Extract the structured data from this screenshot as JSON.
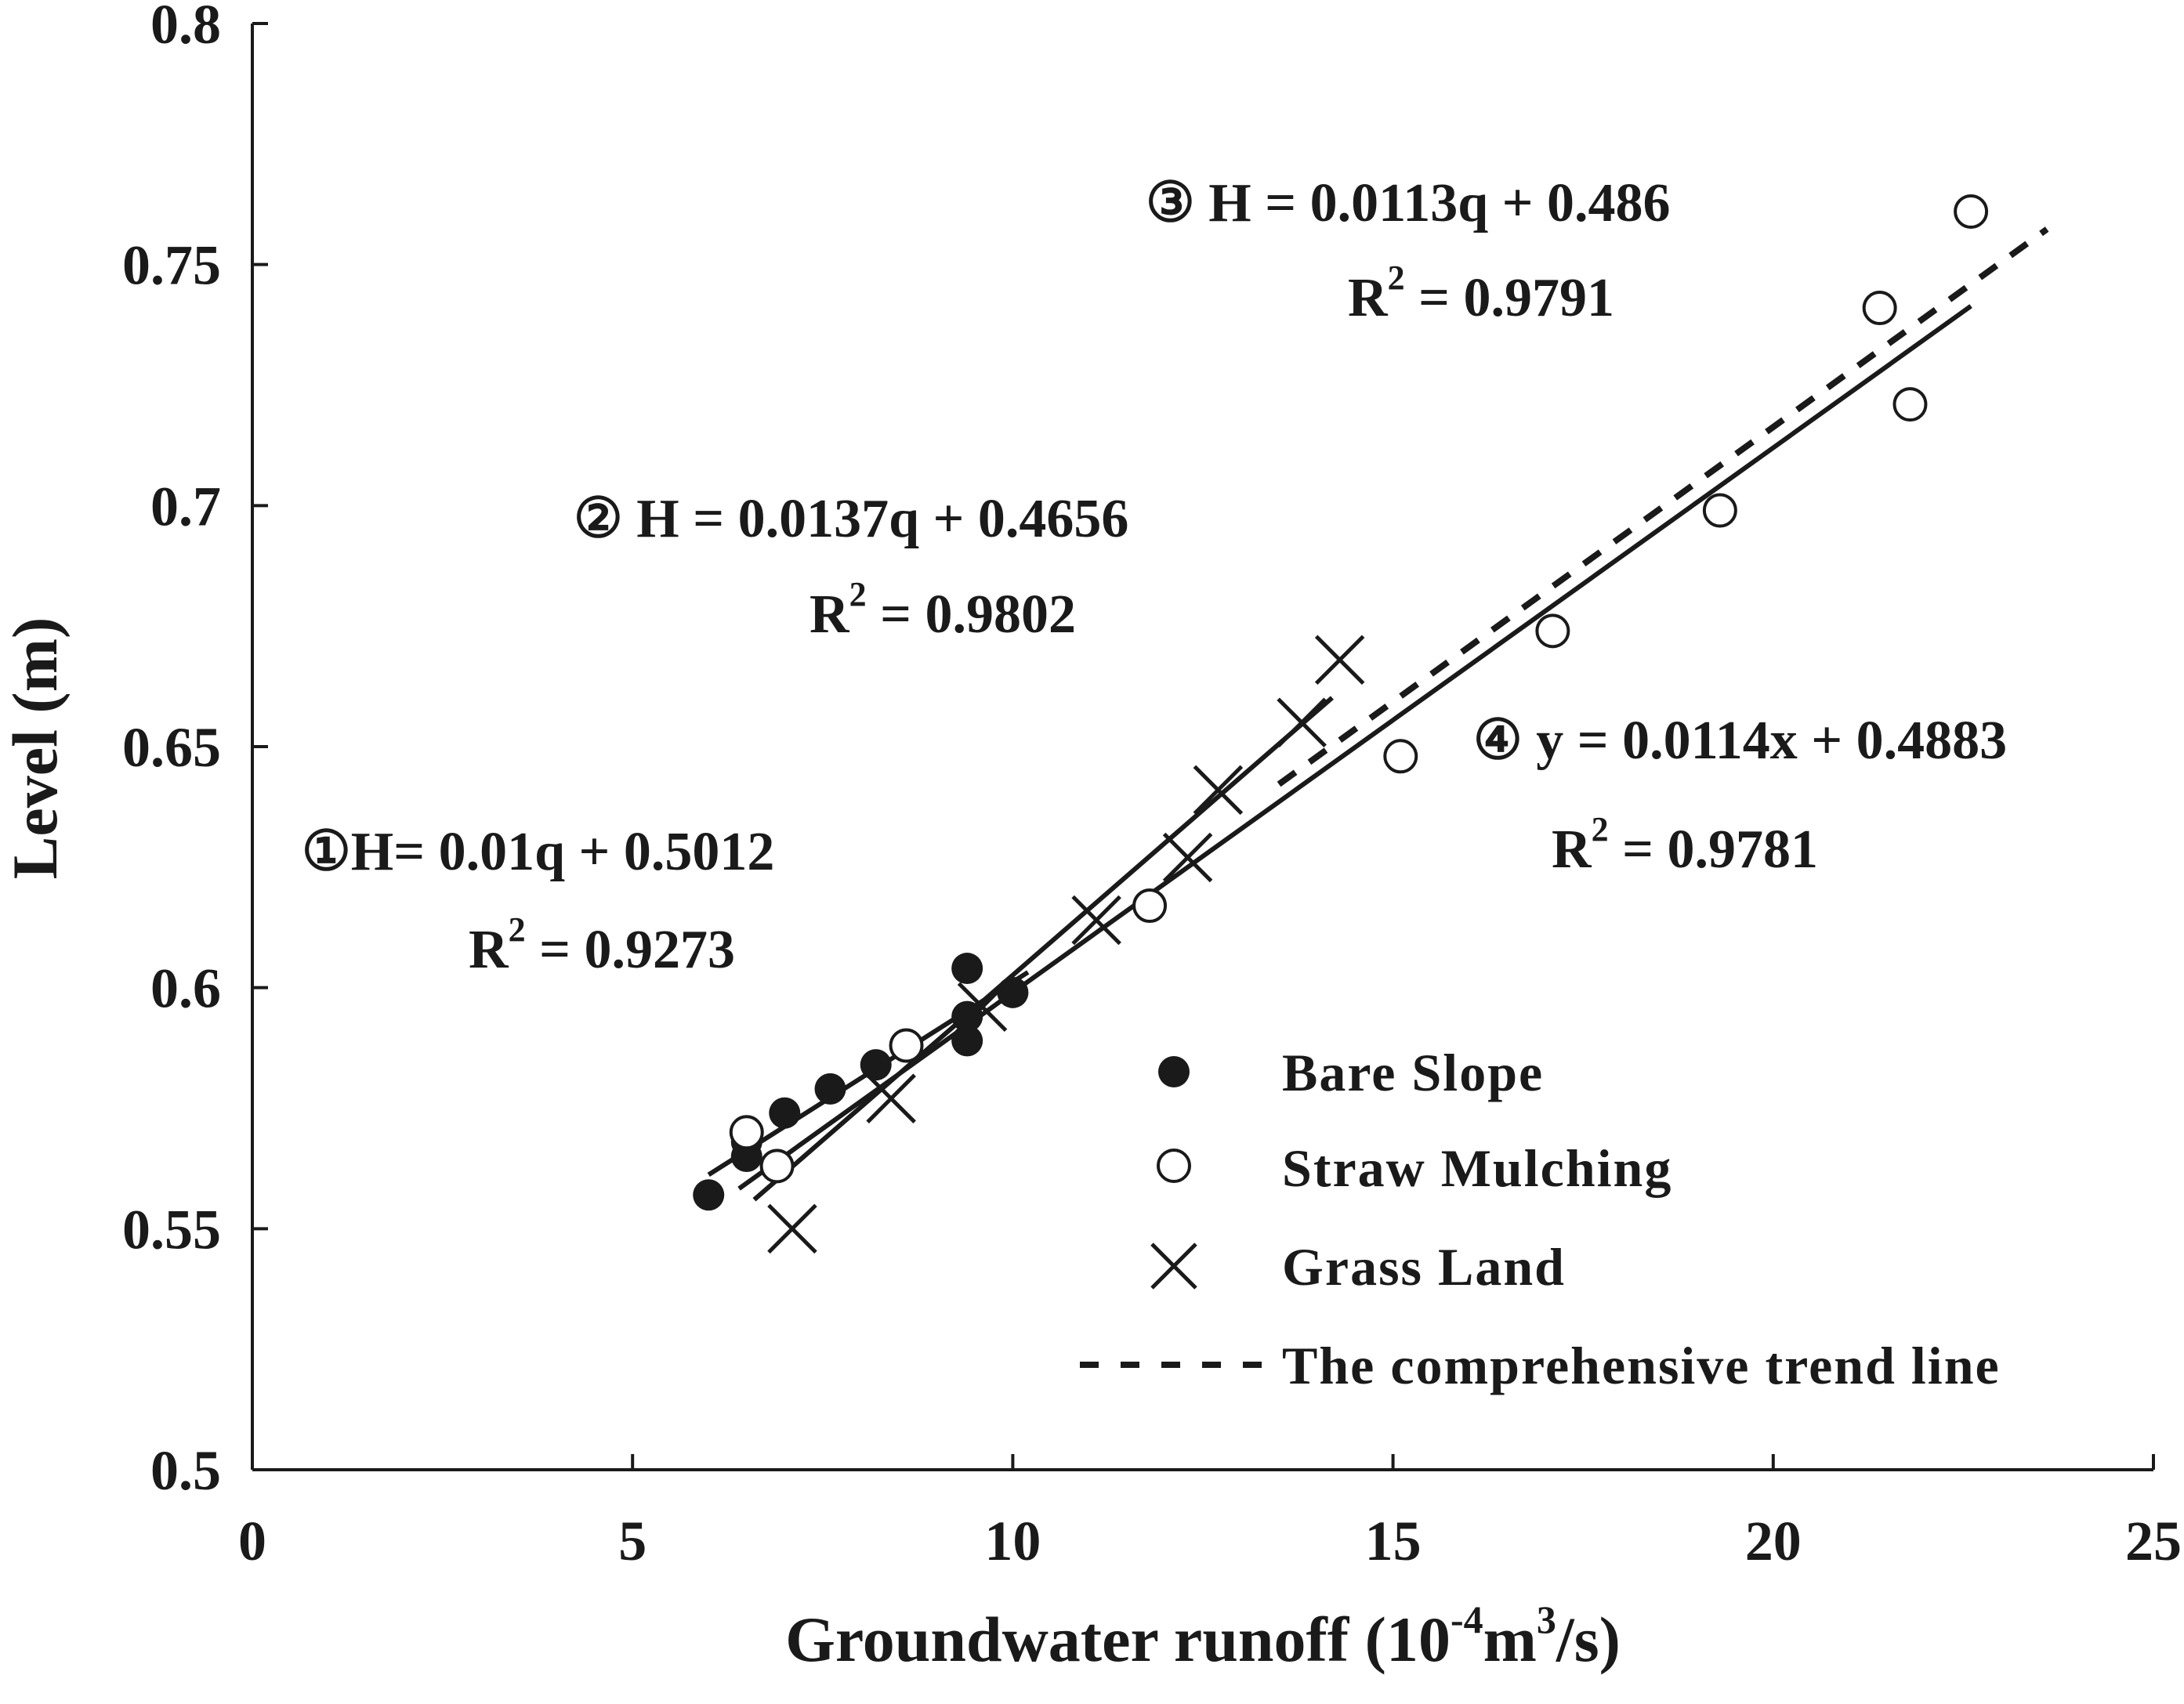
{
  "chart_data": {
    "type": "scatter",
    "xlabel": "Groundwater runoff (10-4m3/s)",
    "xlabel_parts": {
      "main": "Groundwater runoff (10",
      "exp1": "-4",
      "mid": "m",
      "exp2": "3",
      "tail": "/s)"
    },
    "ylabel": "Level (m)",
    "xlim": [
      0,
      25
    ],
    "ylim": [
      0.5,
      0.8
    ],
    "xticks": [
      0,
      5,
      10,
      15,
      20,
      25
    ],
    "xtick_labels": [
      "0",
      "5",
      "10",
      "15",
      "20",
      "25"
    ],
    "yticks": [
      0.5,
      0.55,
      0.6,
      0.65,
      0.7,
      0.75,
      0.8
    ],
    "ytick_labels": [
      "0.5",
      "0.55",
      "0.6",
      "0.65",
      "0.7",
      "0.75",
      "0.8"
    ],
    "grid": false,
    "legend_position": "bottom-right",
    "series": [
      {
        "name": "Bare Slope",
        "marker": "filled-circle",
        "points": [
          [
            6.0,
            0.557
          ],
          [
            6.5,
            0.565
          ],
          [
            6.5,
            0.568
          ],
          [
            7.0,
            0.574
          ],
          [
            7.6,
            0.579
          ],
          [
            8.2,
            0.584
          ],
          [
            9.4,
            0.604
          ],
          [
            9.4,
            0.594
          ],
          [
            9.4,
            0.589
          ],
          [
            10.0,
            0.599
          ]
        ]
      },
      {
        "name": "Straw Mulching",
        "marker": "open-circle",
        "points": [
          [
            6.5,
            0.57
          ],
          [
            6.9,
            0.563
          ],
          [
            8.6,
            0.588
          ],
          [
            11.8,
            0.617
          ],
          [
            15.1,
            0.648
          ],
          [
            17.1,
            0.674
          ],
          [
            19.3,
            0.699
          ],
          [
            21.4,
            0.741
          ],
          [
            21.8,
            0.721
          ],
          [
            22.6,
            0.761
          ]
        ]
      },
      {
        "name": "Grass Land",
        "marker": "x",
        "points": [
          [
            7.1,
            0.55
          ],
          [
            8.4,
            0.577
          ],
          [
            9.6,
            0.596
          ],
          [
            11.1,
            0.614
          ],
          [
            12.3,
            0.627
          ],
          [
            12.7,
            0.641
          ],
          [
            13.8,
            0.655
          ],
          [
            14.3,
            0.668
          ]
        ]
      }
    ],
    "trendlines": [
      {
        "id": "1",
        "series": "Bare Slope",
        "slope": 0.01,
        "intercept": 0.5012,
        "x_range": [
          6.0,
          10.2
        ],
        "style": "solid"
      },
      {
        "id": "2",
        "series": "Grass Land",
        "slope": 0.0137,
        "intercept": 0.4656,
        "x_range": [
          6.6,
          14.2
        ],
        "style": "solid"
      },
      {
        "id": "3",
        "series": "Straw Mulching",
        "slope": 0.0113,
        "intercept": 0.486,
        "x_range": [
          6.4,
          22.6
        ],
        "style": "solid"
      },
      {
        "id": "4",
        "series": "The comprehensive trend line",
        "slope": 0.0114,
        "intercept": 0.4883,
        "x_range": [
          13.5,
          23.6
        ],
        "style": "dashed"
      }
    ],
    "annotations": [
      {
        "id": "eq1",
        "line1": "①H= 0.01q + 0.5012",
        "r2_value": " = 0.9273"
      },
      {
        "id": "eq2",
        "line1": "② H = 0.0137q + 0.4656",
        "r2_value": " = 0.9802"
      },
      {
        "id": "eq3",
        "line1": "③ H = 0.0113q + 0.486",
        "r2_value": " = 0.9791"
      },
      {
        "id": "eq4",
        "line1": "④ y = 0.0114x + 0.4883",
        "r2_value": " = 0.9781"
      }
    ],
    "r2_symbol": "R",
    "r2_exp": "2",
    "legend": [
      "Bare Slope",
      "Straw Mulching",
      "Grass Land",
      "The comprehensive trend line"
    ]
  }
}
